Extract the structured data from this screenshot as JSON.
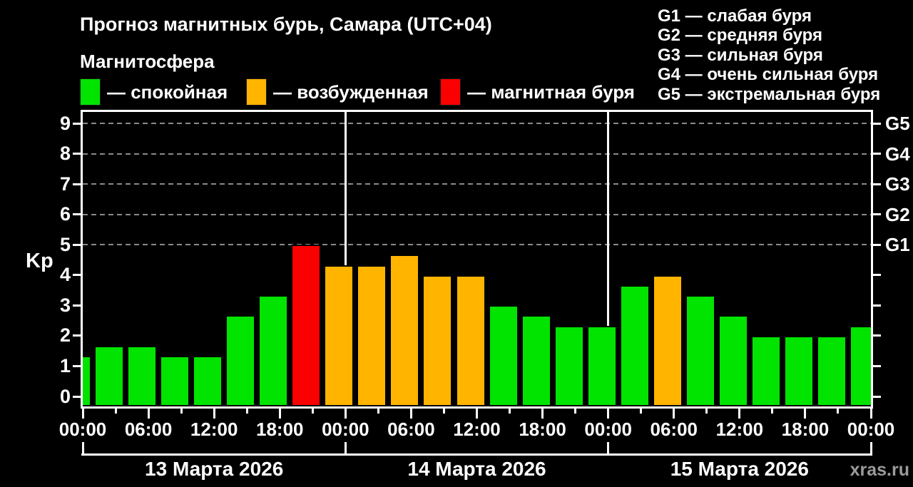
{
  "title": "Прогноз магнитных бурь, Самара (UTC+04)",
  "subtitle": "Магнитосфера",
  "legend": {
    "items": [
      {
        "id": "quiet",
        "label": "— спокойная",
        "color": "#00e400"
      },
      {
        "id": "excited",
        "label": "— возбужденная",
        "color": "#ffb400"
      },
      {
        "id": "storm",
        "label": "— магнитная буря",
        "color": "#fb0000"
      }
    ]
  },
  "storm_scale": [
    "G1 — слабая буря",
    "G2 — средняя буря",
    "G3 — сильная буря",
    "G4 — очень сильная буря",
    "G5 — экстремальная буря"
  ],
  "watermark": "xras.ru",
  "chart_data": {
    "type": "bar",
    "title": "Прогноз магнитных бурь, Самара (UTC+04)",
    "ylabel": "Kp",
    "ylim": [
      0,
      9
    ],
    "y_ticks": [
      0,
      1,
      2,
      3,
      4,
      5,
      6,
      7,
      8,
      9
    ],
    "gridlines_kp": [
      5,
      6,
      7,
      8,
      9
    ],
    "grid": "dashed horizontal at Kp 5-9",
    "legend_position": "top",
    "right_axis": [
      {
        "kp": 5,
        "label": "G1"
      },
      {
        "kp": 6,
        "label": "G2"
      },
      {
        "kp": 7,
        "label": "G3"
      },
      {
        "kp": 8,
        "label": "G4"
      },
      {
        "kp": 9,
        "label": "G5"
      }
    ],
    "x_major_labels": [
      "00:00",
      "06:00",
      "12:00",
      "18:00",
      "00:00",
      "06:00",
      "12:00",
      "18:00",
      "00:00",
      "06:00",
      "12:00",
      "18:00",
      "00:00"
    ],
    "days": [
      "13 Марта 2026",
      "14 Марта 2026",
      "15 Марта 2026"
    ],
    "day_boundary_indices": [
      0,
      8,
      16,
      24
    ],
    "state_colors": {
      "quiet": "#00e400",
      "excited": "#ffb400",
      "storm": "#fb0000"
    },
    "bars": [
      {
        "time": "13 Марта 00:00",
        "kp": 1.33,
        "state": "quiet"
      },
      {
        "time": "13 Марта 03:00",
        "kp": 1.67,
        "state": "quiet"
      },
      {
        "time": "13 Марта 06:00",
        "kp": 1.67,
        "state": "quiet"
      },
      {
        "time": "13 Марта 09:00",
        "kp": 1.33,
        "state": "quiet"
      },
      {
        "time": "13 Марта 12:00",
        "kp": 1.33,
        "state": "quiet"
      },
      {
        "time": "13 Марта 15:00",
        "kp": 2.67,
        "state": "quiet"
      },
      {
        "time": "13 Марта 18:00",
        "kp": 3.33,
        "state": "quiet"
      },
      {
        "time": "13 Марта 21:00",
        "kp": 5.0,
        "state": "storm"
      },
      {
        "time": "14 Марта 00:00",
        "kp": 4.33,
        "state": "excited"
      },
      {
        "time": "14 Марта 03:00",
        "kp": 4.33,
        "state": "excited"
      },
      {
        "time": "14 Марта 06:00",
        "kp": 4.67,
        "state": "excited"
      },
      {
        "time": "14 Марта 09:00",
        "kp": 4.0,
        "state": "excited"
      },
      {
        "time": "14 Марта 12:00",
        "kp": 4.0,
        "state": "excited"
      },
      {
        "time": "14 Марта 15:00",
        "kp": 3.0,
        "state": "quiet"
      },
      {
        "time": "14 Марта 18:00",
        "kp": 2.67,
        "state": "quiet"
      },
      {
        "time": "14 Марта 21:00",
        "kp": 2.33,
        "state": "quiet"
      },
      {
        "time": "15 Марта 00:00",
        "kp": 2.33,
        "state": "quiet"
      },
      {
        "time": "15 Марта 03:00",
        "kp": 3.67,
        "state": "quiet"
      },
      {
        "time": "15 Марта 06:00",
        "kp": 4.0,
        "state": "excited"
      },
      {
        "time": "15 Марта 09:00",
        "kp": 3.33,
        "state": "quiet"
      },
      {
        "time": "15 Марта 12:00",
        "kp": 2.67,
        "state": "quiet"
      },
      {
        "time": "15 Марта 15:00",
        "kp": 2.0,
        "state": "quiet"
      },
      {
        "time": "15 Марта 18:00",
        "kp": 2.0,
        "state": "quiet"
      },
      {
        "time": "15 Марта 21:00",
        "kp": 2.0,
        "state": "quiet"
      },
      {
        "time": "16 Марта 00:00",
        "kp": 2.33,
        "state": "quiet"
      }
    ]
  }
}
